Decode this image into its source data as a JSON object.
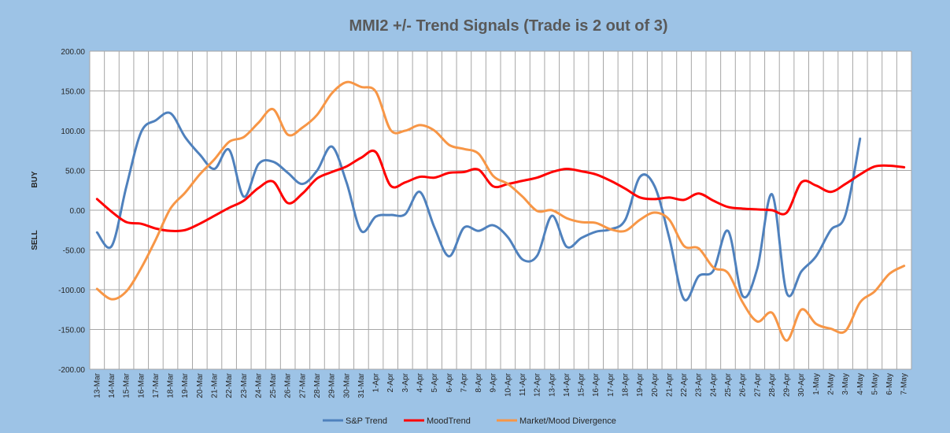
{
  "chart_data": {
    "type": "line",
    "title": "MMI2 +/- Trend Signals (Trade is 2 out of 3)",
    "side_labels": {
      "upper": "BUY",
      "lower": "SELL"
    },
    "ylim": [
      -200,
      200
    ],
    "yticks": [
      "200.00",
      "150.00",
      "100.00",
      "50.00",
      "0.00",
      "-50.00",
      "-100.00",
      "-150.00",
      "-200.00"
    ],
    "ytick_values": [
      200,
      150,
      100,
      50,
      0,
      -50,
      -100,
      -150,
      -200
    ],
    "grid": true,
    "legend_position": "bottom",
    "categories": [
      "13-Mar",
      "14-Mar",
      "15-Mar",
      "16-Mar",
      "17-Mar",
      "18-Mar",
      "19-Mar",
      "20-Mar",
      "21-Mar",
      "22-Mar",
      "23-Mar",
      "24-Mar",
      "25-Mar",
      "26-Mar",
      "27-Mar",
      "28-Mar",
      "29-Mar",
      "30-Mar",
      "31-Mar",
      "1-Apr",
      "2-Apr",
      "3-Apr",
      "4-Apr",
      "5-Apr",
      "6-Apr",
      "7-Apr",
      "8-Apr",
      "9-Apr",
      "10-Apr",
      "11-Apr",
      "12-Apr",
      "13-Apr",
      "14-Apr",
      "15-Apr",
      "16-Apr",
      "17-Apr",
      "18-Apr",
      "19-Apr",
      "20-Apr",
      "21-Apr",
      "22-Apr",
      "23-Apr",
      "24-Apr",
      "25-Apr",
      "26-Apr",
      "27-Apr",
      "28-Apr",
      "29-Apr",
      "30-Apr",
      "1-May",
      "2-May",
      "3-May",
      "4-May",
      "5-May",
      "6-May",
      "7-May"
    ],
    "series": [
      {
        "name": "S&P Trend",
        "color": "#4f81bd",
        "values": [
          -28,
          -45,
          30,
          98,
          113,
          122,
          92,
          70,
          52,
          76,
          17,
          58,
          61,
          47,
          33,
          50,
          80,
          35,
          -26,
          -8,
          -6,
          -5,
          23,
          -22,
          -58,
          -22,
          -26,
          -19,
          -34,
          -62,
          -57,
          -7,
          -46,
          -35,
          -27,
          -24,
          -12,
          42,
          30,
          -35,
          -112,
          -83,
          -76,
          -26,
          -108,
          -73,
          20,
          -104,
          -77,
          -58,
          -25,
          -6,
          90,
          null,
          null,
          null
        ]
      },
      {
        "name": "MoodTrend",
        "color": "#ff0000",
        "values": [
          14,
          -2,
          -15,
          -17,
          -23,
          -26,
          -25,
          -17,
          -7,
          3,
          12,
          28,
          36,
          9,
          21,
          40,
          48,
          55,
          66,
          73,
          31,
          35,
          42,
          41,
          47,
          48,
          51,
          30,
          33,
          37,
          41,
          48,
          52,
          49,
          45,
          37,
          27,
          16,
          14,
          16,
          13,
          21,
          12,
          4,
          2,
          1,
          0,
          -3,
          35,
          31,
          23,
          33,
          45,
          55,
          56,
          54
        ]
      },
      {
        "name": "Market/Mood Divergence",
        "color": "#f79646",
        "values": [
          -99,
          -112,
          -102,
          -73,
          -37,
          2,
          22,
          45,
          64,
          86,
          92,
          110,
          127,
          95,
          104,
          120,
          147,
          161,
          155,
          149,
          101,
          100,
          107,
          100,
          82,
          77,
          71,
          43,
          33,
          17,
          -1,
          0,
          -10,
          -15,
          -16,
          -24,
          -26,
          -12,
          -3,
          -12,
          -45,
          -48,
          -72,
          -79,
          -116,
          -140,
          -129,
          -164,
          -125,
          -143,
          -149,
          -152,
          -116,
          -102,
          -80,
          -70
        ]
      }
    ]
  }
}
